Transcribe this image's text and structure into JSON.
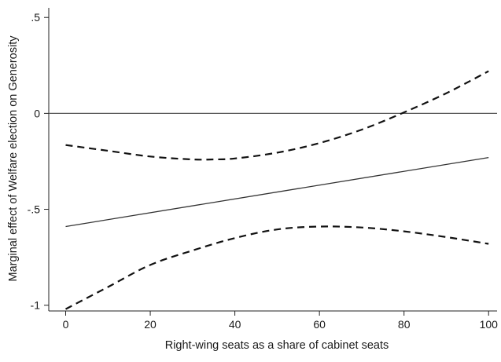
{
  "chart_data": {
    "type": "line",
    "title": "",
    "xlabel": "Right-wing seats as a share of cabinet seats",
    "ylabel": "Marginal effect of Welfare election on Generosity",
    "xlim": [
      -4,
      102
    ],
    "ylim": [
      -1.03,
      0.55
    ],
    "x_ticks": [
      0,
      20,
      40,
      60,
      80,
      100
    ],
    "x_tick_labels": [
      "0",
      "20",
      "40",
      "60",
      "80",
      "100"
    ],
    "y_ticks": [
      0.5,
      0,
      -0.5,
      -1
    ],
    "y_tick_labels": [
      ".5",
      "0",
      "-.5",
      "-1"
    ],
    "grid": false,
    "legend": "none",
    "reference_line": {
      "y": 0
    },
    "series": [
      {
        "role": "estimate",
        "style": "solid",
        "x": [
          0,
          100
        ],
        "y": [
          -0.59,
          -0.23
        ]
      },
      {
        "role": "upper-bound",
        "style": "dashed",
        "x": [
          0,
          10,
          20,
          30,
          35,
          40,
          50,
          60,
          70,
          80,
          90,
          100
        ],
        "y": [
          -0.165,
          -0.195,
          -0.225,
          -0.24,
          -0.24,
          -0.235,
          -0.205,
          -0.155,
          -0.085,
          0.005,
          0.105,
          0.22
        ]
      },
      {
        "role": "lower-bound",
        "style": "dashed",
        "x": [
          0,
          10,
          20,
          30,
          40,
          50,
          60,
          70,
          80,
          90,
          100
        ],
        "y": [
          -1.02,
          -0.905,
          -0.79,
          -0.715,
          -0.65,
          -0.605,
          -0.59,
          -0.595,
          -0.615,
          -0.645,
          -0.68
        ]
      }
    ]
  }
}
